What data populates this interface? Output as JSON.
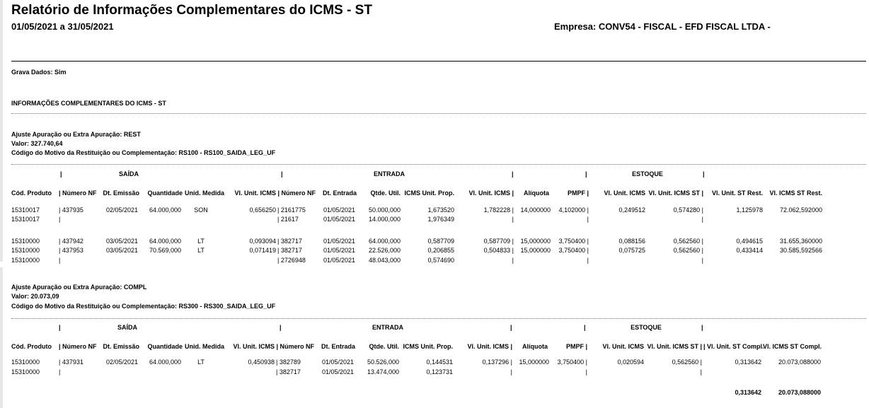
{
  "header": {
    "title": "Relatório de Informações Complementares do ICMS - ST",
    "period": "01/05/2021 a 31/05/2021",
    "empresa": "Empresa: CONV54 - FISCAL - EFD FISCAL LTDA -"
  },
  "grava_dados": "Grava Dados: Sim",
  "section_title": "INFORMAÇÕES COMPLEMENTARES DO ICMS - ST",
  "groups": {
    "saida": "SAÍDA",
    "entrada": "ENTRADA",
    "estoque": "ESTOQUE"
  },
  "columns": {
    "cod_produto": "Cód. Produto",
    "numero_nf": "| Número NF",
    "dt_emissao": "Dt. Emissão",
    "quantidade": "Quantidade",
    "unid_medida": "Unid. Medida",
    "vl_unit_icms_nf": "Vl. Unit. ICMS | Número NF",
    "dt_entrada": "Dt. Entrada",
    "qtde_util": "Qtde. Util.",
    "icms_unit_prop": "ICMS Unit. Prop.",
    "vl_unit_icms": "Vl. Unit. ICMS |",
    "aliquota": "Alíquota",
    "pmpf": "PMPF |",
    "est_vl_unit_icms": "Vl. Unit. ICMS",
    "est_vl_unit_icms_st": "Vl. Unit. ICMS ST |"
  },
  "section1": {
    "ajuste": "Ajuste Apuração ou Extra Apuração: REST",
    "valor": "Valor: 327.740,64",
    "codigo": "Código do Motivo da Restituição ou Complementação: RS100 - RS100_SAIDA_LEG_UF",
    "col_st_rest": "Vl. Unit. ST Rest.",
    "col_icms_st_rest": "Vl. ICMS ST Rest.",
    "rows": [
      {
        "cod": "15310017",
        "nf": "| 437935",
        "dt": "02/05/2021",
        "qtd": "64.000,000",
        "un": "SON",
        "vlu": "0,656250",
        "nfe": "| 2161775",
        "dte": "01/05/2021",
        "qu": "50.000,000",
        "icp": "1,673520",
        "vui": "1,782228 |",
        "aliq": "14,000000",
        "pmpf": "4,102000 |",
        "evi": "0,249512",
        "evs": "0,574280 |",
        "str": "1,125978",
        "isr": "72.062,592000"
      },
      {
        "cod": "15310017",
        "nf": "|",
        "dt": "",
        "qtd": "",
        "un": "",
        "vlu": "",
        "nfe": "| 21617",
        "dte": "01/05/2021",
        "qu": "14.000,000",
        "icp": "1,976349",
        "vui": "|",
        "aliq": "",
        "pmpf": "|",
        "evi": "",
        "evs": "|",
        "str": "",
        "isr": ""
      },
      {
        "cod": "15310000",
        "nf": "| 437942",
        "dt": "03/05/2021",
        "qtd": "64.000,000",
        "un": "LT",
        "vlu": "0,093094",
        "nfe": "| 382717",
        "dte": "01/05/2021",
        "qu": "64.000,000",
        "icp": "0,587709",
        "vui": "0,587709 |",
        "aliq": "15,000000",
        "pmpf": "3,750400 |",
        "evi": "0,088156",
        "evs": "0,562560 |",
        "str": "0,494615",
        "isr": "31.655,360000"
      },
      {
        "cod": "15310000",
        "nf": "| 437953",
        "dt": "03/05/2021",
        "qtd": "70.569,000",
        "un": "LT",
        "vlu": "0,071419",
        "nfe": "| 382717",
        "dte": "01/05/2021",
        "qu": "22.526,000",
        "icp": "0,206855",
        "vui": "0,504833 |",
        "aliq": "15,000000",
        "pmpf": "3,750400 |",
        "evi": "0,075725",
        "evs": "0,562560 |",
        "str": "0,433414",
        "isr": "30.585,592566"
      },
      {
        "cod": "15310000",
        "nf": "|",
        "dt": "",
        "qtd": "",
        "un": "",
        "vlu": "",
        "nfe": "| 2726948",
        "dte": "01/05/2021",
        "qu": "48.043,000",
        "icp": "0,574690",
        "vui": "|",
        "aliq": "",
        "pmpf": "|",
        "evi": "",
        "evs": "|",
        "str": "",
        "isr": ""
      }
    ]
  },
  "section2": {
    "ajuste": "Ajuste Apuração ou Extra Apuração: COMPL",
    "valor": "Valor: 20.073,09",
    "codigo": "Código do Motivo da Restituição ou Complementação: RS300 - RS300_SAIDA_LEG_UF",
    "col_st_compl": "| Vl. Unit. ST Compl.",
    "col_icms_st_compl": "Vl. ICMS ST Compl.",
    "rows": [
      {
        "cod": "15310000",
        "nf": "| 437931",
        "dt": "02/05/2021",
        "qtd": "64.000,000",
        "un": "LT",
        "vlu": "0,450938",
        "nfe": "| 382789",
        "dte": "01/05/2021",
        "qu": "50.526,000",
        "icp": "0,144531",
        "vui": "0,137296 |",
        "aliq": "15,000000",
        "pmpf": "3,750400 |",
        "evi": "0,020594",
        "evs": "0,562560 |",
        "str": "0,313642",
        "isr": "20.073,088000"
      },
      {
        "cod": "15310000",
        "nf": "|",
        "dt": "",
        "qtd": "",
        "un": "",
        "vlu": "",
        "nfe": "| 382717",
        "dte": "01/05/2021",
        "qu": "13.474,000",
        "icp": "0,123731",
        "vui": "|",
        "aliq": "",
        "pmpf": "|",
        "evi": "",
        "evs": "|",
        "str": "",
        "isr": ""
      }
    ],
    "total_st": "0,313642",
    "total_icms": "20.073,088000"
  }
}
